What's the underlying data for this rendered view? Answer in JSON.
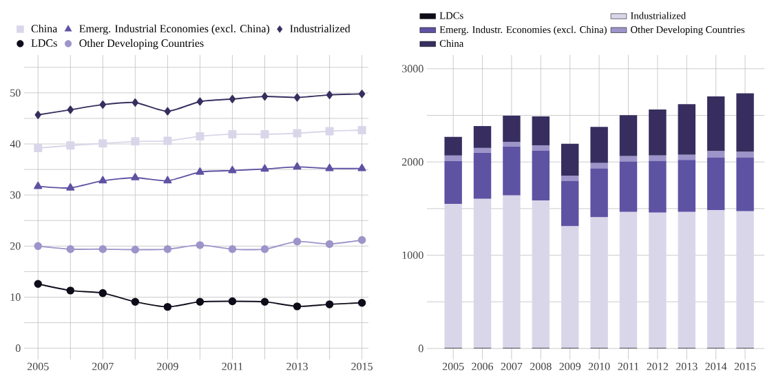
{
  "chart_data": [
    {
      "type": "line",
      "x": [
        2005,
        2006,
        2007,
        2008,
        2009,
        2010,
        2011,
        2012,
        2013,
        2014,
        2015
      ],
      "series": [
        {
          "name": "China",
          "color": "#dad6ea",
          "marker": "square",
          "values": [
            39.2,
            39.7,
            40.1,
            40.5,
            40.6,
            41.5,
            41.9,
            41.9,
            42.1,
            42.5,
            42.7
          ]
        },
        {
          "name": "Emerg. Industrial Economies (excl. China)",
          "color": "#5e52a3",
          "marker": "triangle",
          "values": [
            31.7,
            31.4,
            32.8,
            33.4,
            32.8,
            34.5,
            34.8,
            35.1,
            35.5,
            35.2,
            35.2
          ]
        },
        {
          "name": "Industrialized",
          "color": "#372e5f",
          "marker": "diamond",
          "values": [
            45.7,
            46.7,
            47.7,
            48.1,
            46.4,
            48.3,
            48.8,
            49.3,
            49.1,
            49.6,
            49.8
          ]
        },
        {
          "name": "LDCs",
          "color": "#0f0c1a",
          "marker": "circle",
          "values": [
            12.6,
            11.3,
            10.8,
            9.1,
            8.1,
            9.1,
            9.2,
            9.1,
            8.2,
            8.6,
            8.9
          ]
        },
        {
          "name": "Other Developing Countries",
          "color": "#9d94c9",
          "marker": "circle",
          "values": [
            20.0,
            19.4,
            19.4,
            19.3,
            19.4,
            20.2,
            19.4,
            19.4,
            20.9,
            20.4,
            21.2
          ]
        }
      ],
      "xlim": [
        2004.57,
        2015.2
      ],
      "ylim": [
        -2.2,
        57.4
      ],
      "xticks": [
        2005,
        {
          "value": 2006,
          "label": null
        },
        2007,
        {
          "value": 2008,
          "label": null
        },
        2009,
        {
          "value": 2010,
          "label": null
        },
        2011,
        {
          "value": 2012,
          "label": null
        },
        2013,
        {
          "value": 2014,
          "label": null
        },
        2015
      ],
      "yticks": [
        0,
        {
          "value": 5,
          "label": null
        },
        10,
        {
          "value": 15,
          "label": null
        },
        20,
        {
          "value": 25,
          "label": null
        },
        30,
        {
          "value": 35,
          "label": null
        },
        40,
        {
          "value": 45,
          "label": null
        },
        50,
        {
          "value": 55,
          "label": null
        }
      ],
      "grid": true,
      "legend": "top"
    },
    {
      "type": "bar",
      "stacked": true,
      "categories": [
        "2005",
        "2006",
        "2007",
        "2008",
        "2009",
        "2010",
        "2011",
        "2012",
        "2013",
        "2014",
        "2015"
      ],
      "series": [
        {
          "name": "LDCs",
          "color": "#0f0c1a",
          "values": [
            5,
            5,
            5,
            5,
            5,
            5,
            5,
            5,
            5,
            5,
            5
          ]
        },
        {
          "name": "Industrialized",
          "color": "#dad6ea",
          "values": [
            1546,
            1599,
            1636,
            1583,
            1306,
            1401,
            1459,
            1451,
            1459,
            1480,
            1467
          ]
        },
        {
          "name": "Emerg. Industr. Economies (excl. China)",
          "color": "#5e52a3",
          "values": [
            460,
            494,
            525,
            536,
            488,
            525,
            541,
            557,
            557,
            565,
            578
          ]
        },
        {
          "name": "Other Developing Countries",
          "color": "#9d94c9",
          "values": [
            58,
            52,
            50,
            55,
            51,
            58,
            58,
            56,
            56,
            66,
            58
          ]
        },
        {
          "name": "China",
          "color": "#372e5f",
          "values": [
            200,
            235,
            280,
            309,
            345,
            388,
            438,
            493,
            543,
            586,
            628
          ]
        }
      ],
      "ylim": [
        -118,
        3146
      ],
      "yticks": [
        0,
        {
          "value": 500,
          "label": null
        },
        1000,
        {
          "value": 1500,
          "label": null
        },
        2000,
        {
          "value": 2500,
          "label": null
        },
        3000
      ],
      "grid": true,
      "legend": "top"
    }
  ]
}
